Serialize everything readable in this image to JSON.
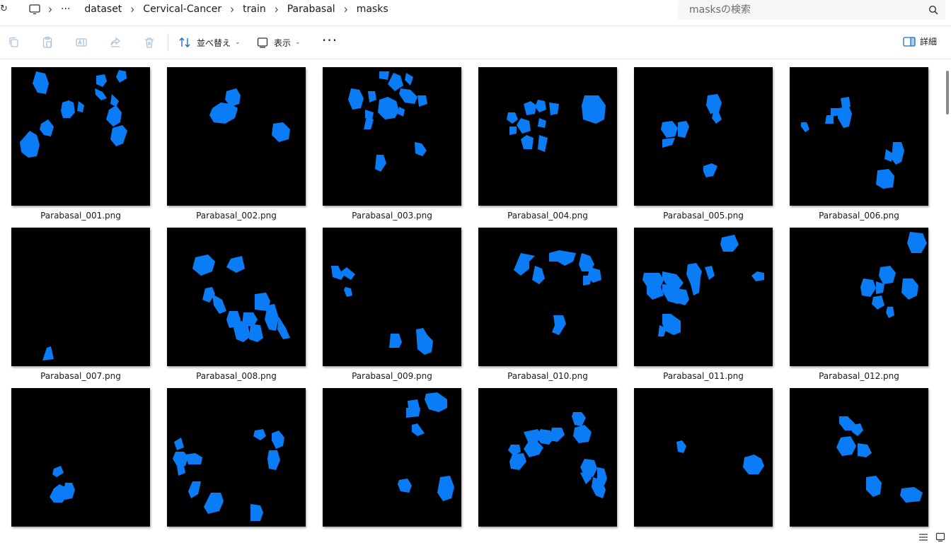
{
  "address": {
    "overflow": "···",
    "breadcrumbs": [
      "dataset",
      "Cervical-Cancer",
      "train",
      "Parabasal",
      "masks"
    ]
  },
  "search": {
    "placeholder": "masksの検索"
  },
  "toolbar": {
    "sort_label": "並べ替え",
    "view_label": "表示",
    "more_label": "···",
    "details_label": "詳細"
  },
  "colors": {
    "mask_blue": "#0a7cf5",
    "thumb_bg": "#000000"
  },
  "files": [
    "Parabasal_001.png",
    "Parabasal_002.png",
    "Parabasal_003.png",
    "Parabasal_004.png",
    "Parabasal_005.png",
    "Parabasal_006.png",
    "Parabasal_007.png",
    "Parabasal_008.png",
    "Parabasal_009.png",
    "Parabasal_010.png",
    "Parabasal_011.png",
    "Parabasal_012.png",
    "",
    "",
    "",
    "",
    "",
    ""
  ]
}
